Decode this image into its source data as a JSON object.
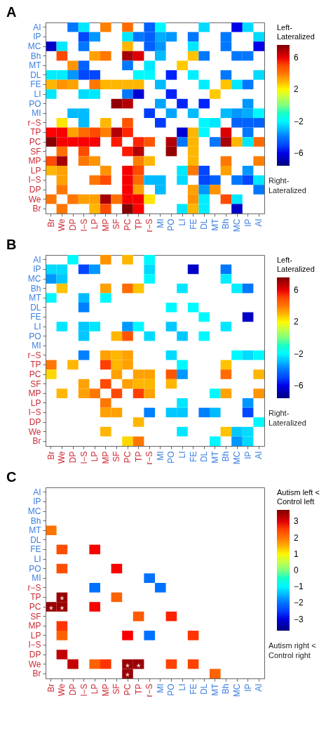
{
  "chart_data": [
    {
      "type": "heatmap",
      "title": "A",
      "clabel": "Left-Lateralized",
      "annotations": [
        "Right-Lateralized"
      ],
      "clim": [
        -7.6,
        7.6
      ],
      "cticks": [
        -6,
        -2,
        2,
        6
      ],
      "categories": [
        "Br",
        "We",
        "DP",
        "l−S",
        "LP",
        "MP",
        "SF",
        "PC",
        "TP",
        "r−S",
        "MI",
        "PO",
        "LI",
        "FE",
        "DL",
        "MT",
        "Bh",
        "MC",
        "IP",
        "AI"
      ],
      "y_categories": [
        "AI",
        "IP",
        "MC",
        "Bh",
        "MT",
        "DL",
        "FE",
        "LI",
        "PO",
        "MI",
        "r−S",
        "TP",
        "PC",
        "SF",
        "MP",
        "LP",
        "l−S",
        "DP",
        "We",
        "Br"
      ],
      "cells": [
        [
          null,
          null,
          -4,
          -2.3,
          null,
          3.8,
          null,
          4.3,
          null,
          -4.5,
          -2,
          null,
          null,
          null,
          -2.5,
          null,
          null,
          -6,
          -2.5,
          null
        ],
        [
          null,
          null,
          null,
          -5,
          -3.5,
          null,
          null,
          -2.3,
          -4,
          -4.5,
          -3.2,
          -3.5,
          null,
          -4,
          null,
          null,
          -4,
          null,
          null,
          -2.5
        ],
        [
          -6.5,
          -2.3,
          null,
          -4,
          null,
          null,
          null,
          3,
          null,
          -4.5,
          -3.5,
          null,
          null,
          -2.3,
          null,
          null,
          -4,
          null,
          null,
          -6
        ],
        [
          null,
          5,
          null,
          null,
          3.3,
          4,
          null,
          7,
          6.2,
          null,
          -3,
          null,
          null,
          2.8,
          -4,
          null,
          null,
          -4,
          -4,
          null
        ],
        [
          null,
          null,
          3.5,
          -4.5,
          null,
          null,
          null,
          -4,
          null,
          -2.3,
          null,
          null,
          2.7,
          null,
          null,
          null,
          null,
          null,
          null,
          null
        ],
        [
          -2.2,
          -2.2,
          -3.5,
          -5,
          -5,
          null,
          null,
          null,
          -2,
          -2,
          null,
          -5.5,
          null,
          -2.2,
          null,
          null,
          -4,
          null,
          null,
          -2.5
        ],
        [
          3,
          3.5,
          3.3,
          null,
          4,
          3,
          3,
          3,
          3,
          null,
          -3,
          null,
          null,
          null,
          -2.2,
          null,
          2.8,
          -2.3,
          -4,
          null
        ],
        [
          -2.3,
          null,
          null,
          -2.5,
          -2.3,
          null,
          null,
          -4,
          -6.3,
          null,
          null,
          -5.5,
          null,
          null,
          null,
          2.7,
          null,
          null,
          null,
          null
        ],
        [
          null,
          null,
          null,
          null,
          null,
          null,
          7.3,
          6.8,
          null,
          null,
          -3.3,
          null,
          -5.5,
          null,
          -5.5,
          null,
          null,
          null,
          -3.5,
          null
        ],
        [
          null,
          null,
          -3,
          -3,
          null,
          null,
          null,
          null,
          null,
          -5.2,
          null,
          -3.3,
          null,
          -3,
          null,
          null,
          -3,
          -3.5,
          -3.2,
          -2
        ],
        [
          null,
          2.3,
          null,
          -3,
          null,
          3,
          null,
          4.8,
          null,
          null,
          -5.2,
          null,
          null,
          null,
          -2,
          -2.3,
          null,
          -4.5,
          -4.5,
          -4.5
        ],
        [
          5.7,
          5.8,
          3.3,
          4.3,
          5,
          3.8,
          6.8,
          5.5,
          null,
          null,
          null,
          null,
          -6.3,
          3,
          -2,
          null,
          6.2,
          null,
          -4,
          null
        ],
        [
          7.5,
          5.8,
          5.8,
          5.8,
          5.8,
          null,
          5.6,
          null,
          5.5,
          4.8,
          null,
          6.8,
          -4,
          3,
          null,
          -4,
          7,
          3,
          -2.3,
          4.3
        ],
        [
          null,
          4.2,
          null,
          5,
          null,
          null,
          null,
          5.6,
          6.8,
          null,
          null,
          7.3,
          null,
          3,
          null,
          null,
          null,
          null,
          null,
          null
        ],
        [
          5,
          7,
          null,
          4,
          3.5,
          null,
          null,
          null,
          3.8,
          3,
          null,
          null,
          null,
          3,
          null,
          null,
          4,
          null,
          null,
          3.8
        ],
        [
          3,
          3.3,
          null,
          null,
          null,
          3.5,
          null,
          5.8,
          5,
          null,
          null,
          null,
          -2.3,
          4,
          -5,
          null,
          3.3,
          null,
          -3.5,
          null
        ],
        [
          null,
          3.3,
          null,
          null,
          4,
          5,
          null,
          5.8,
          4.3,
          -3,
          -3,
          null,
          -2.5,
          null,
          -5,
          -4.5,
          null,
          -4,
          -5,
          -2.3
        ],
        [
          null,
          4,
          null,
          null,
          null,
          null,
          null,
          5.8,
          3.3,
          null,
          -3,
          null,
          null,
          3.3,
          -3.5,
          3.5,
          null,
          null,
          null,
          -4
        ],
        [
          4,
          null,
          4,
          3.3,
          3.3,
          7,
          4.2,
          5.8,
          5.8,
          2.3,
          null,
          null,
          null,
          3.5,
          -2.2,
          null,
          5,
          -2.3,
          null,
          null
        ],
        [
          null,
          4,
          null,
          null,
          3,
          5,
          null,
          7.5,
          5.7,
          null,
          null,
          null,
          -2.3,
          3,
          -2.2,
          null,
          null,
          -6.5,
          null,
          null
        ]
      ]
    },
    {
      "type": "heatmap",
      "title": "B",
      "clabel": "Left-Lateralized",
      "annotations": [
        "Right-Lateralized"
      ],
      "clim": [
        -7.6,
        7.6
      ],
      "cticks": [
        -6,
        -2,
        2,
        6
      ],
      "categories": [
        "Br",
        "We",
        "DP",
        "l−S",
        "LP",
        "MP",
        "SF",
        "PC",
        "TP",
        "r−S",
        "MI",
        "PO",
        "LI",
        "FE",
        "DL",
        "MT",
        "Bh",
        "MC",
        "IP",
        "AI"
      ],
      "y_categories": [
        "AI",
        "IP",
        "MC",
        "Bh",
        "MT",
        "DL",
        "FE",
        "LI",
        "PO",
        "MI",
        "r−S",
        "TP",
        "PC",
        "SF",
        "MP",
        "LP",
        "l−S",
        "DP",
        "We",
        "Br"
      ],
      "cells": [
        [
          null,
          null,
          -2,
          null,
          null,
          3.5,
          null,
          3,
          null,
          -2,
          null,
          null,
          null,
          null,
          null,
          null,
          null,
          null,
          null,
          null
        ],
        [
          -2.5,
          -2.5,
          null,
          -5,
          -3.5,
          null,
          null,
          null,
          null,
          -2.5,
          null,
          null,
          null,
          -6.5,
          null,
          null,
          -4,
          null,
          null,
          null
        ],
        [
          -3.5,
          -2.8,
          null,
          null,
          null,
          null,
          null,
          null,
          null,
          -2,
          null,
          null,
          null,
          null,
          null,
          null,
          -2.2,
          null,
          null,
          null
        ],
        [
          null,
          2.8,
          null,
          null,
          null,
          3.3,
          null,
          4.3,
          2.8,
          null,
          null,
          null,
          -2.3,
          null,
          null,
          null,
          null,
          -2.2,
          -4,
          null
        ],
        [
          -2,
          null,
          null,
          -3,
          null,
          -2,
          null,
          null,
          null,
          null,
          null,
          null,
          null,
          null,
          null,
          null,
          null,
          null,
          null,
          null
        ],
        [
          null,
          null,
          null,
          -3.8,
          null,
          null,
          null,
          null,
          null,
          null,
          null,
          -2,
          null,
          -2,
          null,
          null,
          null,
          null,
          null,
          null
        ],
        [
          null,
          null,
          null,
          null,
          null,
          null,
          null,
          null,
          null,
          null,
          null,
          null,
          null,
          null,
          -2,
          null,
          null,
          null,
          -6.5,
          null
        ],
        [
          null,
          -2.3,
          null,
          -2.8,
          -2.3,
          null,
          null,
          -3.5,
          -2,
          null,
          null,
          -2.8,
          null,
          null,
          null,
          null,
          -2.3,
          null,
          null,
          null
        ],
        [
          null,
          null,
          null,
          -2.8,
          null,
          null,
          3,
          4.8,
          null,
          -2.5,
          null,
          null,
          -2.8,
          null,
          -2,
          null,
          null,
          null,
          null,
          null
        ],
        [
          null,
          null,
          null,
          null,
          null,
          null,
          null,
          null,
          null,
          null,
          null,
          null,
          null,
          null,
          null,
          null,
          null,
          null,
          null,
          null
        ],
        [
          null,
          null,
          null,
          -3.8,
          null,
          3.3,
          3,
          3.3,
          null,
          null,
          null,
          -2.5,
          null,
          null,
          null,
          null,
          null,
          -2,
          -2.5,
          -2
        ],
        [
          4,
          null,
          3,
          null,
          null,
          5.2,
          3,
          3.3,
          null,
          null,
          null,
          null,
          -2,
          null,
          null,
          null,
          2.8,
          null,
          null,
          null
        ],
        [
          2.5,
          null,
          null,
          null,
          null,
          null,
          3.3,
          null,
          3.3,
          3.3,
          null,
          4.8,
          -3.5,
          null,
          null,
          null,
          4.3,
          null,
          null,
          3
        ],
        [
          null,
          null,
          null,
          3.3,
          null,
          5,
          null,
          3.3,
          3,
          3,
          null,
          3,
          null,
          null,
          null,
          null,
          null,
          null,
          null,
          null
        ],
        [
          null,
          3,
          null,
          3.3,
          4,
          null,
          5,
          null,
          5.2,
          3.3,
          null,
          null,
          null,
          null,
          null,
          -2,
          3.3,
          null,
          null,
          3.5
        ],
        [
          null,
          null,
          null,
          null,
          null,
          4,
          null,
          null,
          null,
          null,
          null,
          null,
          -2.3,
          null,
          null,
          null,
          null,
          null,
          -3.5,
          null
        ],
        [
          null,
          null,
          null,
          null,
          null,
          3.3,
          3.3,
          null,
          null,
          -3.8,
          null,
          -2.8,
          -2.8,
          null,
          -3.8,
          -3,
          null,
          null,
          -5,
          null
        ],
        [
          null,
          null,
          null,
          null,
          null,
          null,
          null,
          null,
          3,
          null,
          null,
          null,
          null,
          null,
          null,
          null,
          null,
          null,
          null,
          -2
        ],
        [
          null,
          null,
          null,
          null,
          null,
          3,
          null,
          null,
          null,
          null,
          null,
          null,
          -2.3,
          null,
          null,
          null,
          2.8,
          -2.8,
          -2.5,
          null
        ],
        [
          null,
          null,
          null,
          null,
          null,
          null,
          null,
          2.5,
          4,
          null,
          null,
          null,
          null,
          null,
          null,
          -2,
          null,
          -3.5,
          -2.5,
          null
        ]
      ]
    },
    {
      "type": "heatmap",
      "title": "C",
      "clabel": "Autism left < Control left",
      "clim": [
        -3.7,
        3.7
      ],
      "cticks": [
        -3,
        -2,
        -1,
        0,
        1,
        2,
        3
      ],
      "annotations": [
        "Autism right < Control right"
      ],
      "cell_labels": [
        [
          null,
          null,
          null,
          null,
          null,
          null,
          null,
          null,
          null,
          null,
          null,
          null,
          null,
          null,
          null,
          null,
          null,
          null,
          null,
          null
        ],
        [
          null,
          null,
          null,
          null,
          null,
          null,
          null,
          null,
          null,
          null,
          null,
          null,
          null,
          null,
          null,
          null,
          null,
          null,
          null,
          null
        ],
        [
          null,
          null,
          null,
          null,
          null,
          null,
          null,
          null,
          null,
          null,
          null,
          null,
          null,
          null,
          null,
          null,
          null,
          null,
          null,
          null
        ],
        [
          null,
          null,
          null,
          null,
          null,
          null,
          null,
          null,
          null,
          null,
          null,
          null,
          null,
          null,
          null,
          null,
          null,
          null,
          null,
          null
        ],
        [
          null,
          null,
          null,
          null,
          null,
          null,
          null,
          null,
          null,
          null,
          null,
          null,
          null,
          null,
          null,
          null,
          null,
          null,
          null,
          null
        ],
        [
          null,
          null,
          null,
          null,
          null,
          null,
          null,
          null,
          null,
          null,
          null,
          null,
          null,
          null,
          null,
          null,
          null,
          null,
          null,
          null
        ],
        [
          null,
          null,
          null,
          null,
          null,
          null,
          null,
          null,
          null,
          null,
          null,
          null,
          null,
          null,
          null,
          null,
          null,
          null,
          null,
          null
        ],
        [
          null,
          null,
          null,
          null,
          null,
          null,
          null,
          null,
          null,
          null,
          null,
          null,
          null,
          null,
          null,
          null,
          null,
          null,
          null,
          null
        ],
        [
          null,
          null,
          null,
          null,
          null,
          null,
          null,
          null,
          null,
          null,
          null,
          null,
          null,
          null,
          null,
          null,
          null,
          null,
          null,
          null
        ],
        [
          null,
          null,
          null,
          null,
          null,
          null,
          null,
          null,
          null,
          null,
          null,
          null,
          null,
          null,
          null,
          null,
          null,
          null,
          null,
          null
        ],
        [
          null,
          null,
          null,
          null,
          null,
          null,
          null,
          null,
          null,
          null,
          null,
          null,
          null,
          null,
          null,
          null,
          null,
          null,
          null,
          null
        ],
        [
          null,
          "*",
          null,
          null,
          null,
          null,
          null,
          null,
          null,
          null,
          null,
          null,
          null,
          null,
          null,
          null,
          null,
          null,
          null,
          null
        ],
        [
          "*",
          "*",
          null,
          null,
          null,
          null,
          null,
          null,
          null,
          null,
          null,
          null,
          null,
          null,
          null,
          null,
          null,
          null,
          null,
          null
        ],
        [
          null,
          null,
          null,
          null,
          null,
          null,
          null,
          null,
          null,
          null,
          null,
          null,
          null,
          null,
          null,
          null,
          null,
          null,
          null,
          null
        ],
        [
          null,
          null,
          null,
          null,
          null,
          null,
          null,
          null,
          null,
          null,
          null,
          null,
          null,
          null,
          null,
          null,
          null,
          null,
          null,
          null
        ],
        [
          null,
          null,
          null,
          null,
          null,
          null,
          null,
          null,
          null,
          null,
          null,
          null,
          null,
          null,
          null,
          null,
          null,
          null,
          null,
          null
        ],
        [
          null,
          null,
          null,
          null,
          null,
          null,
          null,
          null,
          null,
          null,
          null,
          null,
          null,
          null,
          null,
          null,
          null,
          null,
          null,
          null
        ],
        [
          null,
          null,
          null,
          null,
          null,
          null,
          null,
          null,
          null,
          null,
          null,
          null,
          null,
          null,
          null,
          null,
          null,
          null,
          null,
          null
        ],
        [
          null,
          null,
          null,
          null,
          null,
          null,
          null,
          "*",
          "*",
          null,
          null,
          null,
          null,
          null,
          null,
          null,
          null,
          null,
          null,
          null
        ],
        [
          null,
          null,
          null,
          null,
          null,
          null,
          null,
          "*",
          null,
          null,
          null,
          null,
          null,
          null,
          null,
          null,
          null,
          null,
          null,
          null
        ]
      ],
      "categories": [
        "Br",
        "We",
        "DP",
        "l−S",
        "LP",
        "MP",
        "SF",
        "PC",
        "TP",
        "r−S",
        "MI",
        "PO",
        "LI",
        "FE",
        "DL",
        "MT",
        "Bh",
        "MC",
        "IP",
        "AI"
      ],
      "y_categories": [
        "AI",
        "IP",
        "MC",
        "Bh",
        "MT",
        "DL",
        "FE",
        "LI",
        "PO",
        "MI",
        "r−S",
        "TP",
        "PC",
        "SF",
        "MP",
        "LP",
        "l−S",
        "DP",
        "We",
        "Br"
      ],
      "cells": [
        [
          null,
          null,
          null,
          null,
          null,
          null,
          null,
          null,
          null,
          null,
          null,
          null,
          null,
          null,
          null,
          null,
          null,
          null,
          null,
          null
        ],
        [
          null,
          null,
          null,
          null,
          null,
          null,
          null,
          null,
          null,
          null,
          null,
          null,
          null,
          null,
          null,
          null,
          null,
          null,
          null,
          null
        ],
        [
          null,
          null,
          null,
          null,
          null,
          null,
          null,
          null,
          null,
          null,
          null,
          null,
          null,
          null,
          null,
          null,
          null,
          null,
          null,
          null
        ],
        [
          null,
          null,
          null,
          null,
          null,
          null,
          null,
          null,
          null,
          null,
          null,
          null,
          null,
          null,
          null,
          null,
          null,
          null,
          null,
          null
        ],
        [
          2,
          null,
          null,
          null,
          null,
          null,
          null,
          null,
          null,
          null,
          null,
          null,
          null,
          null,
          null,
          null,
          null,
          null,
          null,
          null
        ],
        [
          null,
          null,
          null,
          null,
          null,
          null,
          null,
          null,
          null,
          null,
          null,
          null,
          null,
          null,
          null,
          null,
          null,
          null,
          null,
          null
        ],
        [
          null,
          2.4,
          null,
          null,
          2.8,
          null,
          null,
          null,
          null,
          null,
          null,
          null,
          null,
          null,
          null,
          null,
          null,
          null,
          null,
          null
        ],
        [
          null,
          null,
          null,
          null,
          null,
          null,
          null,
          null,
          null,
          null,
          null,
          null,
          null,
          null,
          null,
          null,
          null,
          null,
          null,
          null
        ],
        [
          null,
          2.4,
          null,
          null,
          null,
          null,
          2.8,
          null,
          null,
          null,
          null,
          null,
          null,
          null,
          null,
          null,
          null,
          null,
          null,
          null
        ],
        [
          null,
          null,
          null,
          null,
          null,
          null,
          null,
          null,
          null,
          -2,
          null,
          null,
          null,
          null,
          null,
          null,
          null,
          null,
          null,
          null
        ],
        [
          null,
          null,
          null,
          null,
          -2,
          null,
          null,
          null,
          null,
          null,
          -2,
          null,
          null,
          null,
          null,
          null,
          null,
          null,
          null,
          null
        ],
        [
          null,
          3.5,
          null,
          null,
          null,
          null,
          2.2,
          null,
          null,
          null,
          null,
          null,
          null,
          null,
          null,
          null,
          null,
          null,
          null,
          null
        ],
        [
          3.5,
          3.5,
          null,
          null,
          2.8,
          null,
          null,
          null,
          null,
          null,
          null,
          null,
          null,
          null,
          null,
          null,
          null,
          null,
          null,
          null
        ],
        [
          null,
          null,
          null,
          null,
          null,
          null,
          null,
          null,
          2.3,
          null,
          null,
          2.7,
          null,
          null,
          null,
          null,
          null,
          null,
          null,
          null
        ],
        [
          null,
          2.6,
          null,
          null,
          null,
          null,
          null,
          null,
          null,
          null,
          null,
          null,
          null,
          null,
          null,
          null,
          null,
          null,
          null,
          null
        ],
        [
          null,
          2.2,
          null,
          null,
          null,
          null,
          null,
          2.8,
          null,
          -2,
          null,
          null,
          null,
          2.6,
          null,
          null,
          null,
          null,
          null,
          null
        ],
        [
          null,
          null,
          null,
          null,
          null,
          null,
          null,
          null,
          null,
          null,
          null,
          null,
          null,
          null,
          null,
          null,
          null,
          null,
          null,
          null
        ],
        [
          null,
          3.2,
          null,
          null,
          null,
          null,
          null,
          null,
          null,
          null,
          null,
          null,
          null,
          null,
          null,
          null,
          null,
          null,
          null,
          null
        ],
        [
          null,
          null,
          3.2,
          null,
          2.2,
          2.6,
          null,
          3.5,
          3.5,
          null,
          null,
          2.5,
          null,
          2.5,
          null,
          null,
          null,
          null,
          null,
          null
        ],
        [
          null,
          null,
          null,
          null,
          null,
          null,
          null,
          3.5,
          null,
          null,
          null,
          null,
          null,
          null,
          null,
          2.2,
          null,
          null,
          null,
          null
        ]
      ]
    }
  ]
}
